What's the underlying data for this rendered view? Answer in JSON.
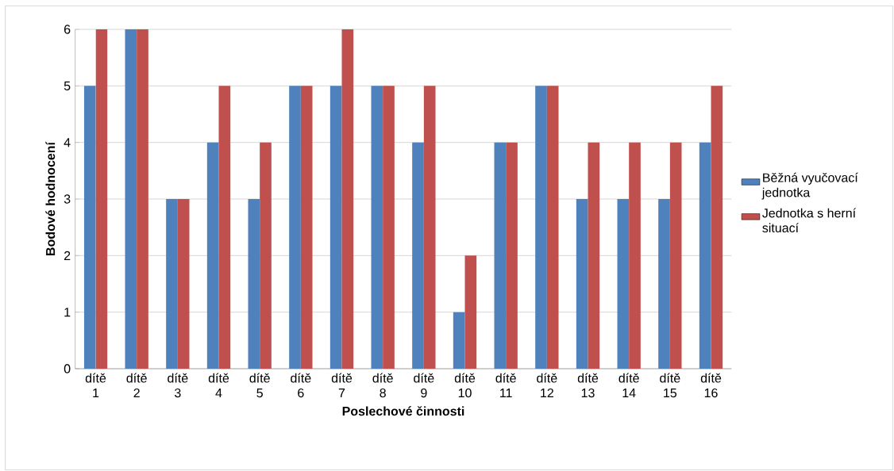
{
  "chart_data": {
    "type": "bar",
    "xlabel": "Poslechové činnosti",
    "ylabel": "Bodové hodnocení",
    "categories": [
      "dítě 1",
      "dítě 2",
      "dítě 3",
      "dítě 4",
      "dítě 5",
      "dítě 6",
      "dítě 7",
      "dítě 8",
      "dítě 9",
      "dítě 10",
      "dítě 11",
      "dítě 12",
      "dítě 13",
      "dítě 14",
      "dítě 15",
      "dítě 16"
    ],
    "series": [
      {
        "name": "Běžná vyučovací jednotka",
        "color": "#4f81bd",
        "values": [
          5,
          6,
          3,
          4,
          3,
          5,
          5,
          5,
          4,
          1,
          4,
          5,
          3,
          3,
          3,
          4
        ]
      },
      {
        "name": "Jednotka s herní situací",
        "color": "#c0504d",
        "values": [
          6,
          6,
          3,
          5,
          4,
          5,
          6,
          5,
          5,
          2,
          4,
          5,
          4,
          4,
          4,
          5
        ]
      }
    ],
    "ylim": [
      0,
      6
    ],
    "yticks": [
      0,
      1,
      2,
      3,
      4,
      5,
      6
    ],
    "grid": "y",
    "legend": "right"
  }
}
